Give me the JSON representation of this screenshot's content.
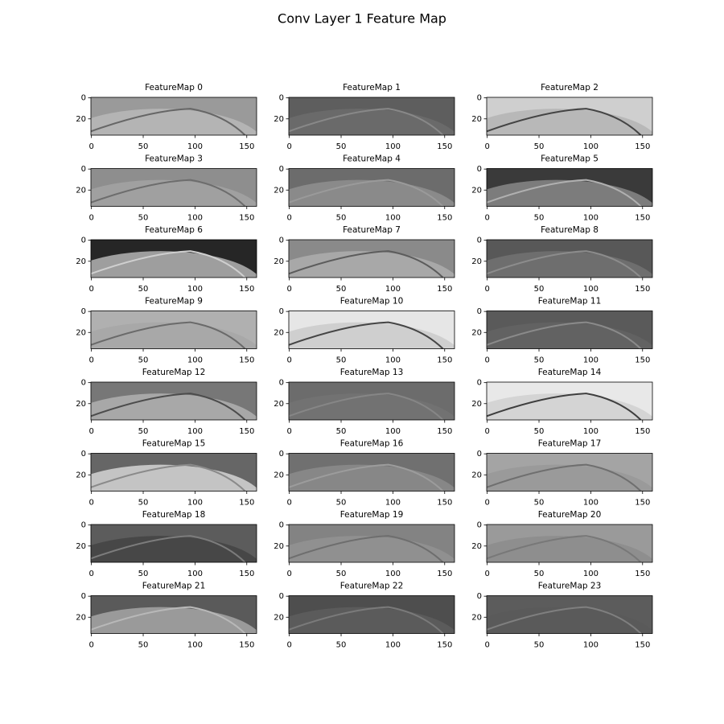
{
  "suptitle": "Conv Layer 1 Feature Map",
  "chart_data": [
    {
      "type": "image",
      "title": "FeatureMap 0",
      "xlim": [
        -0.5,
        159.5
      ],
      "ylim": [
        35.5,
        -0.5
      ],
      "xticks": [
        0,
        50,
        100,
        150
      ],
      "yticks": [
        0,
        20
      ]
    },
    {
      "type": "image",
      "title": "FeatureMap 1",
      "xlim": [
        -0.5,
        159.5
      ],
      "ylim": [
        35.5,
        -0.5
      ],
      "xticks": [
        0,
        50,
        100,
        150
      ],
      "yticks": [
        0,
        20
      ]
    },
    {
      "type": "image",
      "title": "FeatureMap 2",
      "xlim": [
        -0.5,
        159.5
      ],
      "ylim": [
        35.5,
        -0.5
      ],
      "xticks": [
        0,
        50,
        100,
        150
      ],
      "yticks": [
        0,
        20
      ]
    },
    {
      "type": "image",
      "title": "FeatureMap 3",
      "xlim": [
        -0.5,
        159.5
      ],
      "ylim": [
        35.5,
        -0.5
      ],
      "xticks": [
        0,
        50,
        100,
        150
      ],
      "yticks": [
        0,
        20
      ]
    },
    {
      "type": "image",
      "title": "FeatureMap 4",
      "xlim": [
        -0.5,
        159.5
      ],
      "ylim": [
        35.5,
        -0.5
      ],
      "xticks": [
        0,
        50,
        100,
        150
      ],
      "yticks": [
        0,
        20
      ]
    },
    {
      "type": "image",
      "title": "FeatureMap 5",
      "xlim": [
        -0.5,
        159.5
      ],
      "ylim": [
        35.5,
        -0.5
      ],
      "xticks": [
        0,
        50,
        100,
        150
      ],
      "yticks": [
        0,
        20
      ]
    },
    {
      "type": "image",
      "title": "FeatureMap 6",
      "xlim": [
        -0.5,
        159.5
      ],
      "ylim": [
        35.5,
        -0.5
      ],
      "xticks": [
        0,
        50,
        100,
        150
      ],
      "yticks": [
        0,
        20
      ]
    },
    {
      "type": "image",
      "title": "FeatureMap 7",
      "xlim": [
        -0.5,
        159.5
      ],
      "ylim": [
        35.5,
        -0.5
      ],
      "xticks": [
        0,
        50,
        100,
        150
      ],
      "yticks": [
        0,
        20
      ]
    },
    {
      "type": "image",
      "title": "FeatureMap 8",
      "xlim": [
        -0.5,
        159.5
      ],
      "ylim": [
        35.5,
        -0.5
      ],
      "xticks": [
        0,
        50,
        100,
        150
      ],
      "yticks": [
        0,
        20
      ]
    },
    {
      "type": "image",
      "title": "FeatureMap 9",
      "xlim": [
        -0.5,
        159.5
      ],
      "ylim": [
        35.5,
        -0.5
      ],
      "xticks": [
        0,
        50,
        100,
        150
      ],
      "yticks": [
        0,
        20
      ]
    },
    {
      "type": "image",
      "title": "FeatureMap 10",
      "xlim": [
        -0.5,
        159.5
      ],
      "ylim": [
        35.5,
        -0.5
      ],
      "xticks": [
        0,
        50,
        100,
        150
      ],
      "yticks": [
        0,
        20
      ]
    },
    {
      "type": "image",
      "title": "FeatureMap 11",
      "xlim": [
        -0.5,
        159.5
      ],
      "ylim": [
        35.5,
        -0.5
      ],
      "xticks": [
        0,
        50,
        100,
        150
      ],
      "yticks": [
        0,
        20
      ]
    },
    {
      "type": "image",
      "title": "FeatureMap 12",
      "xlim": [
        -0.5,
        159.5
      ],
      "ylim": [
        35.5,
        -0.5
      ],
      "xticks": [
        0,
        50,
        100,
        150
      ],
      "yticks": [
        0,
        20
      ]
    },
    {
      "type": "image",
      "title": "FeatureMap 13",
      "xlim": [
        -0.5,
        159.5
      ],
      "ylim": [
        35.5,
        -0.5
      ],
      "xticks": [
        0,
        50,
        100,
        150
      ],
      "yticks": [
        0,
        20
      ]
    },
    {
      "type": "image",
      "title": "FeatureMap 14",
      "xlim": [
        -0.5,
        159.5
      ],
      "ylim": [
        35.5,
        -0.5
      ],
      "xticks": [
        0,
        50,
        100,
        150
      ],
      "yticks": [
        0,
        20
      ]
    },
    {
      "type": "image",
      "title": "FeatureMap 15",
      "xlim": [
        -0.5,
        159.5
      ],
      "ylim": [
        35.5,
        -0.5
      ],
      "xticks": [
        0,
        50,
        100,
        150
      ],
      "yticks": [
        0,
        20
      ]
    },
    {
      "type": "image",
      "title": "FeatureMap 16",
      "xlim": [
        -0.5,
        159.5
      ],
      "ylim": [
        35.5,
        -0.5
      ],
      "xticks": [
        0,
        50,
        100,
        150
      ],
      "yticks": [
        0,
        20
      ]
    },
    {
      "type": "image",
      "title": "FeatureMap 17",
      "xlim": [
        -0.5,
        159.5
      ],
      "ylim": [
        35.5,
        -0.5
      ],
      "xticks": [
        0,
        50,
        100,
        150
      ],
      "yticks": [
        0,
        20
      ]
    },
    {
      "type": "image",
      "title": "FeatureMap 18",
      "xlim": [
        -0.5,
        159.5
      ],
      "ylim": [
        35.5,
        -0.5
      ],
      "xticks": [
        0,
        50,
        100,
        150
      ],
      "yticks": [
        0,
        20
      ]
    },
    {
      "type": "image",
      "title": "FeatureMap 19",
      "xlim": [
        -0.5,
        159.5
      ],
      "ylim": [
        35.5,
        -0.5
      ],
      "xticks": [
        0,
        50,
        100,
        150
      ],
      "yticks": [
        0,
        20
      ]
    },
    {
      "type": "image",
      "title": "FeatureMap 20",
      "xlim": [
        -0.5,
        159.5
      ],
      "ylim": [
        35.5,
        -0.5
      ],
      "xticks": [
        0,
        50,
        100,
        150
      ],
      "yticks": [
        0,
        20
      ]
    },
    {
      "type": "image",
      "title": "FeatureMap 21",
      "xlim": [
        -0.5,
        159.5
      ],
      "ylim": [
        35.5,
        -0.5
      ],
      "xticks": [
        0,
        50,
        100,
        150
      ],
      "yticks": [
        0,
        20
      ]
    },
    {
      "type": "image",
      "title": "FeatureMap 22",
      "xlim": [
        -0.5,
        159.5
      ],
      "ylim": [
        35.5,
        -0.5
      ],
      "xticks": [
        0,
        50,
        100,
        150
      ],
      "yticks": [
        0,
        20
      ]
    },
    {
      "type": "image",
      "title": "FeatureMap 23",
      "xlim": [
        -0.5,
        159.5
      ],
      "ylim": [
        35.5,
        -0.5
      ],
      "xticks": [
        0,
        50,
        100,
        150
      ],
      "yticks": [
        0,
        20
      ]
    }
  ]
}
